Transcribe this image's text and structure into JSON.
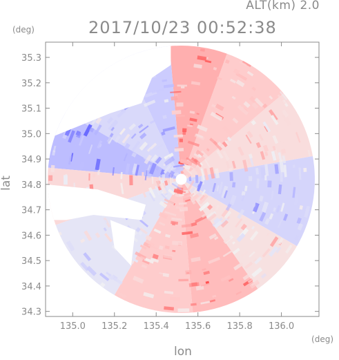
{
  "header": {
    "alt_label": "ALT(km) 2.0",
    "timestamp": "2017/10/23 00:52:38"
  },
  "chart_data": {
    "type": "heatmap",
    "title": "2017/10/23 00:52:38",
    "subtitle": "ALT(km) 2.0",
    "xlabel": "lon",
    "ylabel": "lat",
    "x_unit": "(deg)",
    "y_unit": "(deg)",
    "xlim": [
      134.87,
      136.18
    ],
    "ylim": [
      34.28,
      35.36
    ],
    "x_ticks": [
      {
        "value": 135.0,
        "label": "135.0"
      },
      {
        "value": 135.2,
        "label": "135.2"
      },
      {
        "value": 135.4,
        "label": "135.4"
      },
      {
        "value": 135.6,
        "label": "135.6"
      },
      {
        "value": 135.8,
        "label": "135.8"
      },
      {
        "value": 136.0,
        "label": "136.0"
      }
    ],
    "y_ticks": [
      {
        "value": 34.3,
        "label": "34.3"
      },
      {
        "value": 34.4,
        "label": "34.4"
      },
      {
        "value": 34.5,
        "label": "34.5"
      },
      {
        "value": 34.6,
        "label": "34.6"
      },
      {
        "value": 34.7,
        "label": "34.7"
      },
      {
        "value": 34.8,
        "label": "34.8"
      },
      {
        "value": 34.9,
        "label": "34.9"
      },
      {
        "value": 35.0,
        "label": "35.0"
      },
      {
        "value": 35.1,
        "label": "35.1"
      },
      {
        "value": 35.2,
        "label": "35.2"
      },
      {
        "value": 35.3,
        "label": "35.3"
      }
    ],
    "radar_center": {
      "lon": 135.52,
      "lat": 34.82
    },
    "radar_range_lon": 0.64,
    "colors": {
      "strong_positive": "#ff4d4d",
      "weak_positive": "#ffc8c8",
      "strong_negative": "#5a5aff",
      "weak_negative": "#c8c8ff",
      "neutral": "#f2f2f2",
      "axis": "#8a8a8a",
      "background": "#ffffff"
    },
    "sectors": [
      {
        "from": -30,
        "to": 10,
        "level": -0.35
      },
      {
        "from": 10,
        "to": 40,
        "level": 0.25
      },
      {
        "from": 40,
        "to": 70,
        "level": 0.45
      },
      {
        "from": 70,
        "to": 95,
        "level": 0.6
      },
      {
        "from": 95,
        "to": 115,
        "level": -0.45
      },
      {
        "from": 115,
        "to": 150,
        "level": -0.3
      },
      {
        "from": 150,
        "to": 175,
        "level": -0.55
      },
      {
        "from": 175,
        "to": 200,
        "level": 0.3
      },
      {
        "from": 200,
        "to": 240,
        "level": -0.15
      },
      {
        "from": 240,
        "to": 275,
        "level": 0.45
      },
      {
        "from": 275,
        "to": 305,
        "level": 0.55
      },
      {
        "from": 305,
        "to": 330,
        "level": 0.2
      }
    ],
    "no_data_regions": [
      {
        "name": "northwest-gap",
        "points": [
          [
            134.88,
            35.36
          ],
          [
            135.47,
            35.36
          ],
          [
            135.47,
            35.27
          ],
          [
            135.38,
            35.22
          ],
          [
            135.33,
            35.12
          ],
          [
            135.18,
            35.08
          ],
          [
            135.0,
            35.02
          ],
          [
            134.88,
            34.98
          ]
        ]
      },
      {
        "name": "west-gap",
        "points": [
          [
            134.87,
            34.8
          ],
          [
            135.12,
            34.78
          ],
          [
            135.35,
            34.72
          ],
          [
            135.33,
            34.66
          ],
          [
            135.1,
            34.68
          ],
          [
            134.97,
            34.66
          ],
          [
            134.87,
            34.66
          ]
        ]
      },
      {
        "name": "southwest-notch",
        "points": [
          [
            135.18,
            34.66
          ],
          [
            135.3,
            34.62
          ],
          [
            135.28,
            34.48
          ],
          [
            135.2,
            34.55
          ]
        ]
      }
    ]
  }
}
